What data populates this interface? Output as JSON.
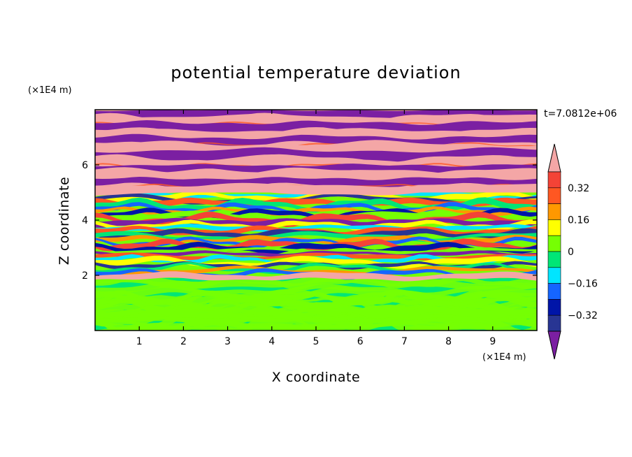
{
  "chart_data": {
    "type": "heatmap",
    "title": "potential temperature deviation",
    "xlabel": "X coordinate",
    "ylabel": "Z coordinate",
    "x_unit": "(×1E4 m)",
    "z_unit": "(×1E4 m)",
    "time_label": "t=7.0812e+06",
    "xlim": [
      0,
      10
    ],
    "ylim": [
      0,
      8
    ],
    "x_ticks": [
      "1",
      "2",
      "3",
      "4",
      "5",
      "6",
      "7",
      "8",
      "9"
    ],
    "y_ticks": [
      "2",
      "4",
      "6"
    ],
    "colorbar": {
      "levels": [
        -0.4,
        -0.32,
        -0.24,
        -0.16,
        -0.08,
        0,
        0.08,
        0.16,
        0.24,
        0.32,
        0.4
      ],
      "labels": [
        "0.32",
        "0.16",
        "0",
        "−0.16",
        "−0.32"
      ],
      "colors": [
        "#7b1fa2",
        "#283593",
        "#0015a8",
        "#1565ff",
        "#00e5ff",
        "#00e676",
        "#76ff03",
        "#ffff00",
        "#ff9800",
        "#ff5722",
        "#f44336",
        "#f4a6a6"
      ]
    },
    "field_layers": [
      {
        "z_range": [
          0,
          1.9
        ],
        "description_levels": [
          0,
          0.08
        ],
        "pattern": "green-lime turbulent"
      },
      {
        "z_range": [
          1.9,
          5.0
        ],
        "description_levels": [
          -0.4,
          0.4
        ],
        "pattern": "multicolor thin layers"
      },
      {
        "z_range": [
          5.0,
          8.0
        ],
        "description_levels": [
          -0.4,
          0.4
        ],
        "pattern": "alternating purple/pink layers"
      }
    ]
  }
}
